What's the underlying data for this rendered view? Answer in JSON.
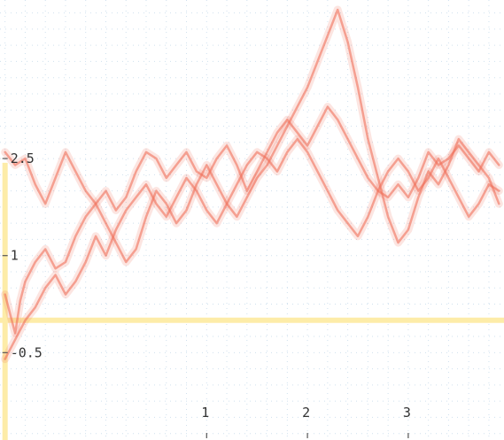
{
  "chart_data": {
    "type": "line",
    "title": "",
    "xlabel": "",
    "ylabel": "",
    "xlim": [
      -1.05,
      3.95
    ],
    "ylim": [
      -1.85,
      4.95
    ],
    "grid": true,
    "x_ticks": [
      {
        "value": 1,
        "label": "1"
      },
      {
        "value": 2,
        "label": "2"
      },
      {
        "value": 3,
        "label": "3"
      }
    ],
    "y_ticks": [
      {
        "value": 2.5,
        "label": "2.5"
      },
      {
        "value": 1,
        "label": "1"
      },
      {
        "value": -0.5,
        "label": "-0.5"
      }
    ],
    "reference_lines": {
      "horizontal_y": 0,
      "vertical_x": -1
    },
    "colors": {
      "series": "#f0705a",
      "axis_line": "#fdeca8",
      "grid": "#cfe0ee",
      "background": "#ffffff"
    },
    "series": [
      {
        "x": [
          -1.0,
          -0.95,
          -0.9,
          -0.85,
          -0.8,
          -0.7,
          -0.6,
          -0.5,
          -0.4,
          -0.3,
          -0.2,
          -0.1,
          0.0,
          0.1,
          0.2,
          0.3,
          0.4,
          0.5,
          0.6,
          0.7,
          0.8,
          0.9,
          1.0,
          1.1,
          1.2,
          1.3,
          1.4,
          1.5,
          1.6,
          1.7,
          1.8,
          1.9,
          2.0,
          2.1,
          2.2,
          2.3,
          2.4,
          2.5,
          2.6,
          2.7,
          2.8,
          2.9,
          3.0,
          3.1,
          3.2,
          3.3,
          3.4,
          3.5,
          3.6,
          3.7,
          3.8,
          3.9
        ],
        "y": [
          0.4,
          0.1,
          -0.2,
          0.3,
          0.6,
          0.9,
          1.1,
          0.8,
          0.9,
          1.3,
          1.6,
          1.8,
          2.0,
          1.7,
          1.9,
          2.3,
          2.6,
          2.5,
          2.2,
          2.4,
          2.6,
          2.3,
          2.2,
          2.5,
          2.7,
          2.4,
          2.0,
          2.3,
          2.6,
          2.9,
          3.1,
          2.9,
          2.7,
          3.0,
          3.3,
          3.1,
          2.8,
          2.5,
          2.2,
          2.0,
          1.9,
          2.1,
          1.9,
          2.2,
          2.6,
          2.4,
          2.5,
          2.7,
          2.5,
          2.3,
          2.6,
          2.4
        ]
      },
      {
        "x": [
          -1.0,
          -0.9,
          -0.8,
          -0.7,
          -0.6,
          -0.5,
          -0.4,
          -0.3,
          -0.2,
          -0.1,
          0.0,
          0.1,
          0.2,
          0.3,
          0.4,
          0.5,
          0.6,
          0.7,
          0.8,
          0.9,
          1.0,
          1.1,
          1.2,
          1.3,
          1.4,
          1.5,
          1.6,
          1.7,
          1.8,
          1.9,
          2.0,
          2.1,
          2.2,
          2.3,
          2.4,
          2.5,
          2.6,
          2.7,
          2.8,
          2.9,
          3.0,
          3.1,
          3.2,
          3.3,
          3.4,
          3.5,
          3.6,
          3.7,
          3.8,
          3.9
        ],
        "y": [
          2.6,
          2.4,
          2.5,
          2.1,
          1.8,
          2.2,
          2.6,
          2.3,
          2.0,
          1.8,
          1.5,
          1.2,
          0.9,
          1.1,
          1.6,
          2.0,
          1.8,
          1.5,
          1.7,
          2.1,
          2.4,
          2.1,
          1.8,
          1.6,
          1.9,
          2.2,
          2.4,
          2.7,
          3.0,
          3.3,
          3.6,
          4.0,
          4.4,
          4.8,
          4.3,
          3.6,
          2.8,
          2.2,
          1.6,
          1.2,
          1.4,
          1.9,
          2.3,
          2.1,
          2.4,
          2.8,
          2.6,
          2.4,
          2.2,
          1.8
        ]
      },
      {
        "x": [
          -1.0,
          -0.9,
          -0.8,
          -0.7,
          -0.6,
          -0.5,
          -0.4,
          -0.3,
          -0.2,
          -0.1,
          0.0,
          0.1,
          0.2,
          0.3,
          0.4,
          0.5,
          0.6,
          0.7,
          0.8,
          0.9,
          1.0,
          1.1,
          1.2,
          1.3,
          1.4,
          1.5,
          1.6,
          1.7,
          1.8,
          1.9,
          2.0,
          2.1,
          2.2,
          2.3,
          2.4,
          2.5,
          2.6,
          2.7,
          2.8,
          2.9,
          3.0,
          3.1,
          3.2,
          3.3,
          3.4,
          3.5,
          3.6,
          3.7,
          3.8,
          3.9
        ],
        "y": [
          -0.6,
          -0.3,
          0.0,
          0.2,
          0.5,
          0.7,
          0.4,
          0.6,
          0.9,
          1.3,
          1.0,
          1.4,
          1.7,
          1.9,
          2.1,
          1.8,
          1.6,
          1.9,
          2.2,
          2.0,
          1.7,
          1.5,
          1.8,
          2.1,
          2.4,
          2.6,
          2.5,
          2.3,
          2.6,
          2.8,
          2.6,
          2.3,
          2.0,
          1.7,
          1.5,
          1.3,
          1.6,
          2.0,
          2.3,
          2.5,
          2.3,
          2.0,
          2.2,
          2.5,
          2.2,
          1.9,
          1.6,
          1.8,
          2.1,
          2.0
        ]
      }
    ]
  }
}
